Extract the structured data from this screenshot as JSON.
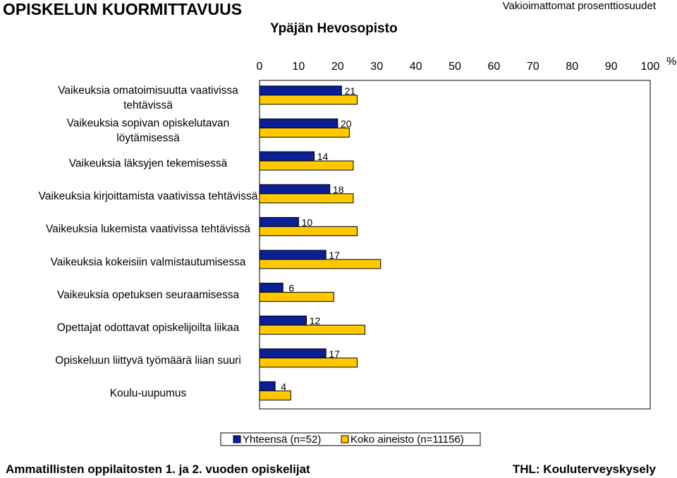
{
  "header": {
    "title": "OPISKELUN KUORMITTAVUUS",
    "subtitle": "Ypäjän Hevosopisto",
    "note": "Vakioimattomat prosenttiosuudet"
  },
  "footer": {
    "left": "Ammatillisten oppilaitosten 1. ja 2. vuoden opiskelijat",
    "right": "THL: Kouluterveyskysely"
  },
  "colors": {
    "series1": "#0a1e96",
    "series2": "#ffc800",
    "axis": "#000000"
  },
  "chart_data": {
    "type": "bar",
    "orientation": "horizontal",
    "xlim": [
      0,
      100
    ],
    "xticks": [
      0,
      10,
      20,
      30,
      40,
      50,
      60,
      70,
      80,
      90,
      100
    ],
    "xunit": "%",
    "grid": false,
    "legend_position": "bottom",
    "categories": [
      [
        "Vaikeuksia omatoimisuutta vaativissa",
        "tehtävissä"
      ],
      [
        "Vaikeuksia sopivan opiskelutavan",
        "löytämisessä"
      ],
      [
        "Vaikeuksia läksyjen tekemisessä"
      ],
      [
        "Vaikeuksia kirjoittamista vaativissa tehtävissä"
      ],
      [
        "Vaikeuksia lukemista vaativissa tehtävissä"
      ],
      [
        "Vaikeuksia kokeisiin valmistautumisessa"
      ],
      [
        "Vaikeuksia opetuksen seuraamisessa"
      ],
      [
        "Opettajat odottavat opiskelijoilta liikaa"
      ],
      [
        "Opiskeluun liittyvä työmäärä liian suuri"
      ],
      [
        "Koulu-uupumus"
      ]
    ],
    "series": [
      {
        "name": "Yhteensä (n=52)",
        "values": [
          21,
          20,
          14,
          18,
          10,
          17,
          6,
          12,
          17,
          4
        ],
        "labeled": true
      },
      {
        "name": "Koko aineisto (n=11156)",
        "values": [
          25,
          23,
          24,
          24,
          25,
          31,
          19,
          27,
          25,
          8
        ],
        "labeled": false
      }
    ]
  }
}
